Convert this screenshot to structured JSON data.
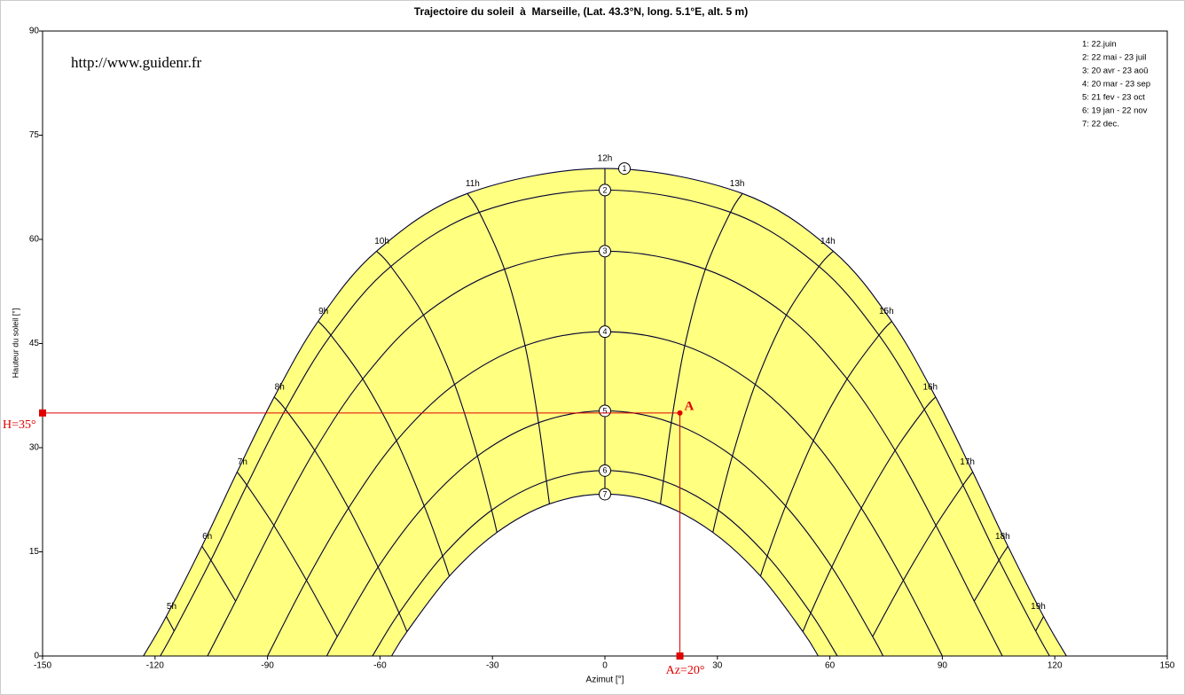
{
  "chart_data": {
    "type": "sunpath",
    "title": "Trajectoire du soleil  à  Marseille, (Lat. 43.3°N, long. 5.1°E, alt. 5 m)",
    "x_label": "Azimut [°]",
    "y_label": "Hauteur du soleil [°]",
    "watermark": "http://www.guidenr.fr",
    "xlim": [
      -150,
      150
    ],
    "xticks": [
      -150,
      -120,
      -90,
      -60,
      -30,
      0,
      30,
      60,
      90,
      120,
      150
    ],
    "ylim": [
      0,
      90
    ],
    "yticks": [
      0,
      15,
      30,
      45,
      60,
      75,
      90
    ],
    "fill_color": "#ffff80",
    "line_color": "#000033",
    "hours": [
      "5h",
      "6h",
      "7h",
      "8h",
      "9h",
      "10h",
      "11h",
      "12h",
      "13h",
      "14h",
      "15h",
      "16h",
      "17h",
      "18h",
      "19h"
    ],
    "series": [
      {
        "name": "1: 22.juin",
        "label": "1",
        "rise_set": [
          -123.1,
          123.1
        ],
        "x": [
          -117.0,
          -107.5,
          -98.1,
          -88.2,
          -76.5,
          -60.9,
          -36.7,
          0,
          36.7,
          60.9,
          76.5,
          88.2,
          98.1,
          107.5,
          117.0
        ],
        "y": [
          5.7,
          15.8,
          26.5,
          37.3,
          48.2,
          58.3,
          66.6,
          70.2,
          66.6,
          58.3,
          48.2,
          37.3,
          26.5,
          15.8,
          5.7
        ]
      },
      {
        "name": "2: 22 mai - 23 juil",
        "label": "2",
        "rise_set": [
          -118.6,
          118.6
        ],
        "x": [
          -114.9,
          -105.1,
          -95.5,
          -85.2,
          -73.1,
          -57.1,
          -33.5,
          0,
          33.5,
          57.1,
          73.1,
          85.2,
          95.5,
          105.1,
          114.9
        ],
        "y": [
          3.6,
          13.8,
          24.6,
          35.5,
          46.2,
          56.1,
          63.9,
          67.1,
          63.9,
          56.1,
          46.2,
          35.5,
          24.6,
          13.8,
          3.6
        ]
      },
      {
        "name": "3: 20 avr - 23 aoû",
        "label": "3",
        "rise_set": [
          -106.0,
          106.0
        ],
        "x": [
          null,
          -98.5,
          -88.3,
          -77.4,
          -64.6,
          -48.4,
          -26.8,
          0,
          26.8,
          48.4,
          64.6,
          77.4,
          88.3,
          98.5,
          null
        ],
        "y": [
          null,
          7.9,
          18.8,
          29.6,
          39.9,
          49.1,
          55.7,
          58.3,
          55.7,
          49.1,
          39.9,
          29.6,
          18.8,
          7.9,
          null
        ]
      },
      {
        "name": "4: 20 mar - 23 sep",
        "label": "4",
        "rise_set": [
          -90,
          90
        ],
        "x": [
          null,
          null,
          -79.6,
          -68.4,
          -55.6,
          -40.1,
          -21.3,
          0,
          21.3,
          40.1,
          55.6,
          68.4,
          79.6,
          null,
          null
        ],
        "y": [
          null,
          null,
          10.9,
          21.3,
          31.0,
          39.1,
          44.7,
          46.7,
          44.7,
          39.1,
          31.0,
          21.3,
          10.9,
          null,
          null
        ]
      },
      {
        "name": "5: 21 fev - 23 oct",
        "label": "5",
        "rise_set": [
          -74.2,
          74.2
        ],
        "x": [
          null,
          null,
          -71.4,
          -60.5,
          -48.2,
          -34.0,
          -17.7,
          0,
          17.7,
          34.0,
          48.2,
          60.5,
          71.4,
          null,
          null
        ],
        "y": [
          null,
          null,
          2.8,
          12.8,
          21.6,
          28.8,
          33.6,
          35.3,
          33.6,
          28.8,
          21.6,
          12.8,
          2.8,
          null,
          null
        ]
      },
      {
        "name": "6: 19 jan - 22 nov",
        "label": "6",
        "rise_set": [
          -62.0,
          62.0
        ],
        "x": [
          null,
          null,
          null,
          -54.9,
          -43.3,
          -30.2,
          -15.6,
          0,
          15.6,
          30.2,
          43.3,
          54.9,
          null,
          null,
          null
        ],
        "y": [
          null,
          null,
          null,
          6.2,
          14.4,
          21.0,
          25.2,
          26.7,
          25.2,
          21.0,
          14.4,
          6.2,
          null,
          null,
          null
        ]
      },
      {
        "name": "7: 22 dec.",
        "label": "7",
        "rise_set": [
          -56.9,
          56.9
        ],
        "x": [
          null,
          null,
          null,
          -52.8,
          -41.5,
          -28.8,
          -14.8,
          0,
          14.8,
          28.8,
          41.5,
          52.8,
          null,
          null,
          null
        ],
        "y": [
          null,
          null,
          null,
          3.5,
          11.5,
          17.8,
          21.9,
          23.3,
          21.9,
          17.8,
          11.5,
          3.5,
          null,
          null,
          null
        ]
      }
    ],
    "annotation": {
      "x": 20,
      "y": 35,
      "label": "A",
      "x_label": "Az=20°",
      "y_label": "H=35°",
      "color": "#e00000"
    }
  }
}
